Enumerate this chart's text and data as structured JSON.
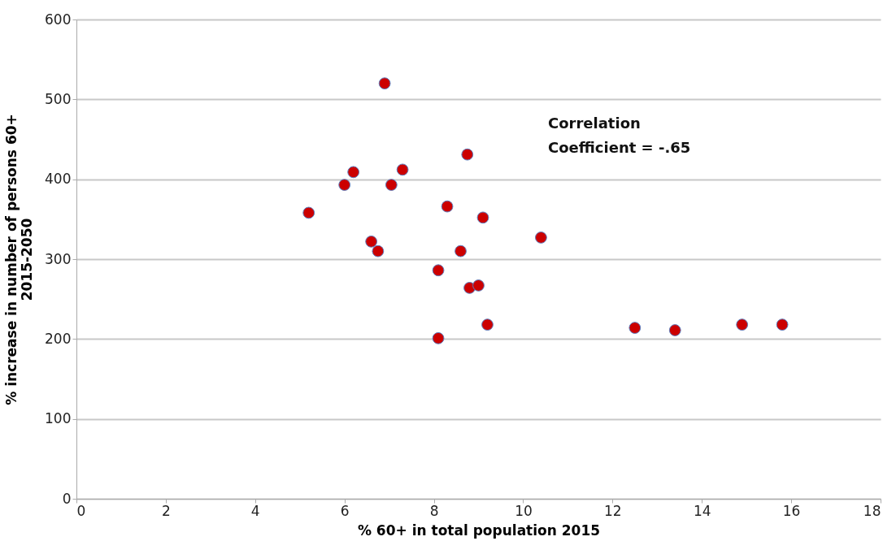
{
  "chart_data": {
    "type": "scatter",
    "xlabel": "% 60+ in total population 2015",
    "ylabel": "% increase in number of persons 60+\n2015-2050",
    "x": [
      5.2,
      6.0,
      6.2,
      6.6,
      6.75,
      6.9,
      7.05,
      7.3,
      8.1,
      8.1,
      8.3,
      8.6,
      8.75,
      8.8,
      9.0,
      9.1,
      9.2,
      10.4,
      12.5,
      13.4,
      14.9,
      15.8
    ],
    "series": [
      {
        "color": "#cc0000",
        "values": [
          358,
          393,
          409,
          322,
          310,
          520,
          393,
          412,
          286,
          201,
          366,
          310,
          431,
          264,
          267,
          352,
          218,
          327,
          214,
          211,
          218,
          218
        ]
      }
    ],
    "xlim": [
      0,
      18
    ],
    "xticks": [
      0,
      2,
      4,
      6,
      8,
      10,
      12,
      14,
      16,
      18
    ],
    "ylim": [
      0,
      600
    ],
    "yticks": [
      0,
      100,
      200,
      300,
      400,
      500,
      600
    ],
    "grid": "y",
    "marker": "circle",
    "annotations": [
      "Correlation\nCoefficient = -.65"
    ]
  }
}
